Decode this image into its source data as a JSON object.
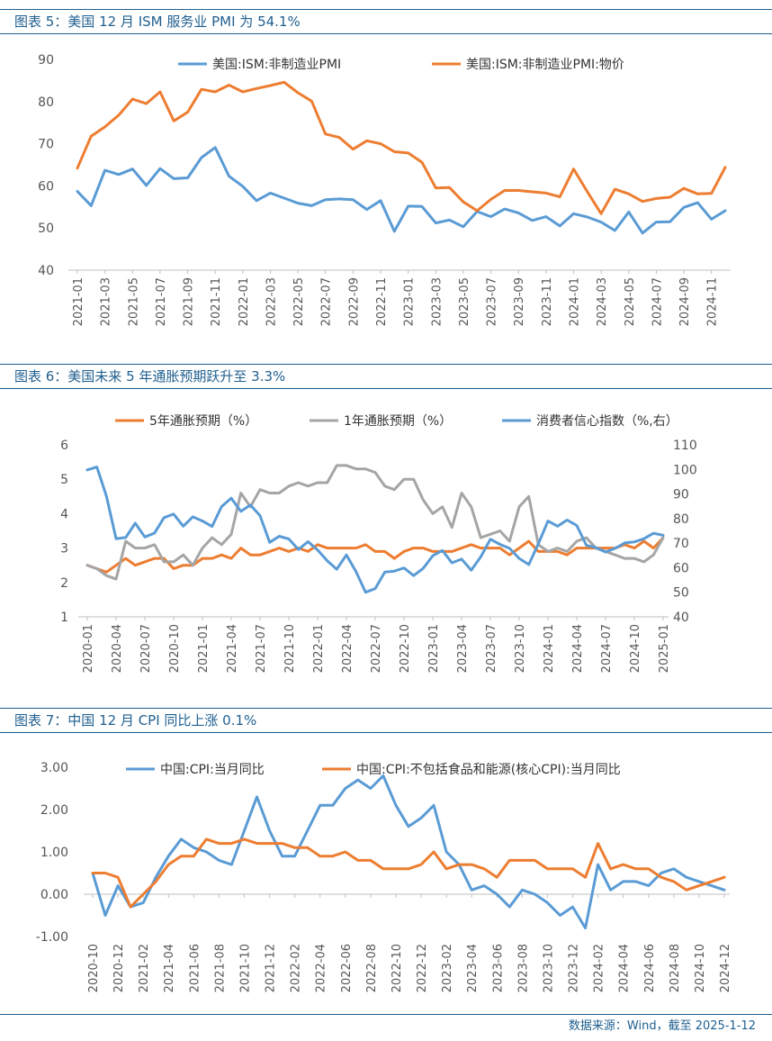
{
  "colors": {
    "blue": "#5a9bd5",
    "orange": "#ed7d31",
    "gray": "#a5a5a5",
    "header": "#1f5f8f"
  },
  "footer": "数据来源：Wind，截至 2025-1-12",
  "chart_data": [
    {
      "type": "line",
      "title": "图表 5：美国 12 月 ISM 服务业 PMI 为 54.1%",
      "ylim": [
        40,
        90
      ],
      "yticks": [
        40,
        50,
        60,
        70,
        80,
        90
      ],
      "x": [
        "2021-01",
        "2021-02",
        "2021-03",
        "2021-04",
        "2021-05",
        "2021-06",
        "2021-07",
        "2021-08",
        "2021-09",
        "2021-10",
        "2021-11",
        "2021-12",
        "2022-01",
        "2022-02",
        "2022-03",
        "2022-04",
        "2022-05",
        "2022-06",
        "2022-07",
        "2022-08",
        "2022-09",
        "2022-10",
        "2022-11",
        "2022-12",
        "2023-01",
        "2023-02",
        "2023-03",
        "2023-04",
        "2023-05",
        "2023-06",
        "2023-07",
        "2023-08",
        "2023-09",
        "2023-10",
        "2023-11",
        "2023-12",
        "2024-01",
        "2024-02",
        "2024-03",
        "2024-04",
        "2024-05",
        "2024-06",
        "2024-07",
        "2024-08",
        "2024-09",
        "2024-10",
        "2024-11",
        "2024-12"
      ],
      "xticks": [
        "2021-01",
        "2021-03",
        "2021-05",
        "2021-07",
        "2021-09",
        "2021-11",
        "2022-01",
        "2022-03",
        "2022-05",
        "2022-07",
        "2022-09",
        "2022-11",
        "2023-01",
        "2023-03",
        "2023-05",
        "2023-07",
        "2023-09",
        "2023-11",
        "2024-01",
        "2024-03",
        "2024-05",
        "2024-07",
        "2024-09",
        "2024-11"
      ],
      "legend_position": "top",
      "series": [
        {
          "name": "美国:ISM:非制造业PMI",
          "color": "#5a9bd5",
          "axis": "left",
          "values": [
            58.7,
            55.3,
            63.7,
            62.7,
            64.0,
            60.1,
            64.1,
            61.7,
            61.9,
            66.7,
            69.1,
            62.3,
            59.9,
            56.5,
            58.3,
            57.1,
            55.9,
            55.3,
            56.7,
            56.9,
            56.7,
            54.4,
            56.5,
            49.2,
            55.2,
            55.1,
            51.2,
            51.9,
            50.3,
            53.9,
            52.7,
            54.5,
            53.6,
            51.8,
            52.7,
            50.5,
            53.4,
            52.6,
            51.4,
            49.4,
            53.8,
            48.8,
            51.4,
            51.5,
            54.9,
            56.0,
            52.1,
            54.1
          ]
        },
        {
          "name": "美国:ISM:非制造业PMI:物价",
          "color": "#ed7d31",
          "axis": "left",
          "values": [
            64.2,
            71.8,
            74.0,
            76.8,
            80.6,
            79.5,
            82.3,
            75.4,
            77.5,
            82.9,
            82.3,
            83.9,
            82.3,
            83.1,
            83.8,
            84.6,
            82.1,
            80.1,
            72.3,
            71.5,
            68.7,
            70.7,
            70.0,
            68.1,
            67.8,
            65.6,
            59.5,
            59.6,
            56.2,
            54.1,
            56.8,
            58.9,
            58.9,
            58.6,
            58.3,
            57.4,
            64.0,
            58.6,
            53.4,
            59.2,
            58.1,
            56.3,
            57.0,
            57.3,
            59.4,
            58.1,
            58.2,
            64.4
          ]
        }
      ]
    },
    {
      "type": "line",
      "title": "图表 6：美国未来 5 年通胀预期跃升至 3.3%",
      "ylim": [
        1,
        6
      ],
      "yticks": [
        1,
        2,
        3,
        4,
        5,
        6
      ],
      "y2lim": [
        40,
        110
      ],
      "y2ticks": [
        40,
        50,
        60,
        70,
        80,
        90,
        100,
        110
      ],
      "x": [
        "2020-01",
        "2020-02",
        "2020-03",
        "2020-04",
        "2020-05",
        "2020-06",
        "2020-07",
        "2020-08",
        "2020-09",
        "2020-10",
        "2020-11",
        "2020-12",
        "2021-01",
        "2021-02",
        "2021-03",
        "2021-04",
        "2021-05",
        "2021-06",
        "2021-07",
        "2021-08",
        "2021-09",
        "2021-10",
        "2021-11",
        "2021-12",
        "2022-01",
        "2022-02",
        "2022-03",
        "2022-04",
        "2022-05",
        "2022-06",
        "2022-07",
        "2022-08",
        "2022-09",
        "2022-10",
        "2022-11",
        "2022-12",
        "2023-01",
        "2023-02",
        "2023-03",
        "2023-04",
        "2023-05",
        "2023-06",
        "2023-07",
        "2023-08",
        "2023-09",
        "2023-10",
        "2023-11",
        "2023-12",
        "2024-01",
        "2024-02",
        "2024-03",
        "2024-04",
        "2024-05",
        "2024-06",
        "2024-07",
        "2024-08",
        "2024-09",
        "2024-10",
        "2024-11",
        "2024-12",
        "2025-01"
      ],
      "xticks": [
        "2020-01",
        "2020-04",
        "2020-07",
        "2020-10",
        "2021-01",
        "2021-04",
        "2021-07",
        "2021-10",
        "2022-01",
        "2022-04",
        "2022-07",
        "2022-10",
        "2023-01",
        "2023-04",
        "2023-07",
        "2023-10",
        "2024-01",
        "2024-04",
        "2024-07",
        "2024-10",
        "2025-01"
      ],
      "legend_position": "top",
      "series": [
        {
          "name": "5年通胀预期（%）",
          "color": "#ed7d31",
          "axis": "left",
          "values": [
            2.5,
            2.4,
            2.3,
            2.5,
            2.7,
            2.5,
            2.6,
            2.7,
            2.7,
            2.4,
            2.5,
            2.5,
            2.7,
            2.7,
            2.8,
            2.7,
            3.0,
            2.8,
            2.8,
            2.9,
            3.0,
            2.9,
            3.0,
            2.9,
            3.1,
            3.0,
            3.0,
            3.0,
            3.0,
            3.1,
            2.9,
            2.9,
            2.7,
            2.9,
            3.0,
            3.0,
            2.9,
            2.9,
            2.9,
            3.0,
            3.1,
            3.0,
            3.0,
            3.0,
            2.8,
            3.0,
            3.2,
            2.9,
            2.9,
            2.9,
            2.8,
            3.0,
            3.0,
            3.0,
            3.0,
            3.0,
            3.1,
            3.0,
            3.2,
            3.0,
            3.3
          ]
        },
        {
          "name": "1年通胀预期（%）",
          "color": "#a5a5a5",
          "axis": "left",
          "values": [
            2.5,
            2.4,
            2.2,
            2.1,
            3.2,
            3.0,
            3.0,
            3.1,
            2.6,
            2.6,
            2.8,
            2.5,
            3.0,
            3.3,
            3.1,
            3.4,
            4.6,
            4.2,
            4.7,
            4.6,
            4.6,
            4.8,
            4.9,
            4.8,
            4.9,
            4.9,
            5.4,
            5.4,
            5.3,
            5.3,
            5.2,
            4.8,
            4.7,
            5.0,
            5.0,
            4.4,
            4.0,
            4.2,
            3.6,
            4.6,
            4.2,
            3.3,
            3.4,
            3.5,
            3.2,
            4.2,
            4.5,
            3.1,
            2.9,
            3.0,
            2.9,
            3.2,
            3.3,
            3.0,
            2.9,
            2.8,
            2.7,
            2.7,
            2.6,
            2.8,
            3.3
          ]
        },
        {
          "name": "消费者信心指数（%,右）",
          "color": "#5a9bd5",
          "axis": "right",
          "values": [
            99.8,
            101.0,
            89.1,
            71.8,
            72.3,
            78.1,
            72.5,
            74.1,
            80.4,
            81.8,
            76.9,
            80.7,
            79.0,
            76.8,
            84.9,
            88.3,
            82.9,
            85.5,
            81.2,
            70.3,
            72.8,
            71.7,
            67.4,
            70.6,
            67.2,
            62.8,
            59.4,
            65.2,
            58.4,
            50.0,
            51.5,
            58.2,
            58.6,
            59.9,
            56.8,
            59.7,
            64.9,
            67.0,
            62.0,
            63.5,
            59.0,
            64.4,
            71.6,
            69.5,
            67.9,
            63.8,
            61.3,
            69.7,
            79.0,
            76.9,
            79.4,
            77.2,
            69.1,
            68.2,
            66.4,
            67.9,
            70.1,
            70.5,
            71.8,
            74.0,
            73.2
          ]
        }
      ]
    },
    {
      "type": "line",
      "title": "图表 7：中国 12 月 CPI 同比上涨 0.1%",
      "ylim": [
        -1,
        3
      ],
      "yticks": [
        "3.00",
        "2.00",
        "1.00",
        "0.00",
        "-1.00"
      ],
      "x": [
        "2020-10",
        "2020-11",
        "2020-12",
        "2021-01",
        "2021-02",
        "2021-03",
        "2021-04",
        "2021-05",
        "2021-06",
        "2021-07",
        "2021-08",
        "2021-09",
        "2021-10",
        "2021-11",
        "2021-12",
        "2022-01",
        "2022-02",
        "2022-03",
        "2022-04",
        "2022-05",
        "2022-06",
        "2022-07",
        "2022-08",
        "2022-09",
        "2022-10",
        "2022-11",
        "2022-12",
        "2023-01",
        "2023-02",
        "2023-03",
        "2023-04",
        "2023-05",
        "2023-06",
        "2023-07",
        "2023-08",
        "2023-09",
        "2023-10",
        "2023-11",
        "2023-12",
        "2024-01",
        "2024-02",
        "2024-03",
        "2024-04",
        "2024-05",
        "2024-06",
        "2024-07",
        "2024-08",
        "2024-09",
        "2024-10",
        "2024-11",
        "2024-12"
      ],
      "xticks": [
        "2020-10",
        "2020-12",
        "2021-02",
        "2021-04",
        "2021-06",
        "2021-08",
        "2021-10",
        "2021-12",
        "2022-02",
        "2022-04",
        "2022-06",
        "2022-08",
        "2022-10",
        "2022-12",
        "2023-02",
        "2023-04",
        "2023-06",
        "2023-08",
        "2023-10",
        "2023-12",
        "2024-02",
        "2024-04",
        "2024-06",
        "2024-08",
        "2024-10",
        "2024-12"
      ],
      "legend_position": "top",
      "series": [
        {
          "name": "中国:CPI:当月同比",
          "color": "#5a9bd5",
          "axis": "left",
          "values": [
            0.5,
            -0.5,
            0.2,
            -0.3,
            -0.2,
            0.4,
            0.9,
            1.3,
            1.1,
            1.0,
            0.8,
            0.7,
            1.5,
            2.3,
            1.5,
            0.9,
            0.9,
            1.5,
            2.1,
            2.1,
            2.5,
            2.7,
            2.5,
            2.8,
            2.1,
            1.6,
            1.8,
            2.1,
            1.0,
            0.7,
            0.1,
            0.2,
            0.0,
            -0.3,
            0.1,
            0.0,
            -0.2,
            -0.5,
            -0.3,
            -0.8,
            0.7,
            0.1,
            0.3,
            0.3,
            0.2,
            0.5,
            0.6,
            0.4,
            0.3,
            0.2,
            0.1
          ]
        },
        {
          "name": "中国:CPI:不包括食品和能源(核心CPI):当月同比",
          "color": "#ed7d31",
          "axis": "left",
          "values": [
            0.5,
            0.5,
            0.4,
            -0.3,
            0.0,
            0.3,
            0.7,
            0.9,
            0.9,
            1.3,
            1.2,
            1.2,
            1.3,
            1.2,
            1.2,
            1.2,
            1.1,
            1.1,
            0.9,
            0.9,
            1.0,
            0.8,
            0.8,
            0.6,
            0.6,
            0.6,
            0.7,
            1.0,
            0.6,
            0.7,
            0.7,
            0.6,
            0.4,
            0.8,
            0.8,
            0.8,
            0.6,
            0.6,
            0.6,
            0.4,
            1.2,
            0.6,
            0.7,
            0.6,
            0.6,
            0.4,
            0.3,
            0.1,
            0.2,
            0.3,
            0.4
          ]
        }
      ]
    }
  ]
}
